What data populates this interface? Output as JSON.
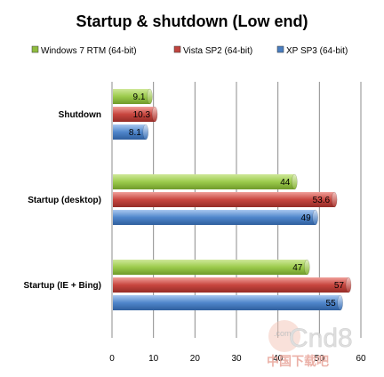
{
  "chart_data": {
    "type": "bar",
    "orientation": "horizontal",
    "title": "Startup & shutdown  (Low end)",
    "categories": [
      "Shutdown",
      "Startup (desktop)",
      "Startup (IE + Bing)"
    ],
    "series": [
      {
        "name": "Windows 7 RTM  (64-bit)",
        "color": "#8fbc3f",
        "values": [
          9.1,
          44,
          47
        ],
        "labels": [
          "9.1",
          "44",
          "47"
        ]
      },
      {
        "name": "Vista SP2 (64-bit)",
        "color": "#c0453f",
        "values": [
          10.3,
          53.6,
          57
        ],
        "labels": [
          "10.3",
          "53.6",
          "57"
        ]
      },
      {
        "name": "XP SP3 (64-bit)",
        "color": "#4a7ec0",
        "values": [
          8.1,
          49,
          55
        ],
        "labels": [
          "8.1",
          "49",
          "55"
        ]
      }
    ],
    "xlim": [
      0,
      60
    ],
    "x_ticks": [
      "0",
      "10",
      "20",
      "30",
      "40",
      "50",
      "60"
    ],
    "grid": true,
    "legend_position": "top"
  },
  "watermark": {
    "text_top": ".com",
    "brand": "Cnd8",
    "text_bottom": "中国下载吧"
  }
}
